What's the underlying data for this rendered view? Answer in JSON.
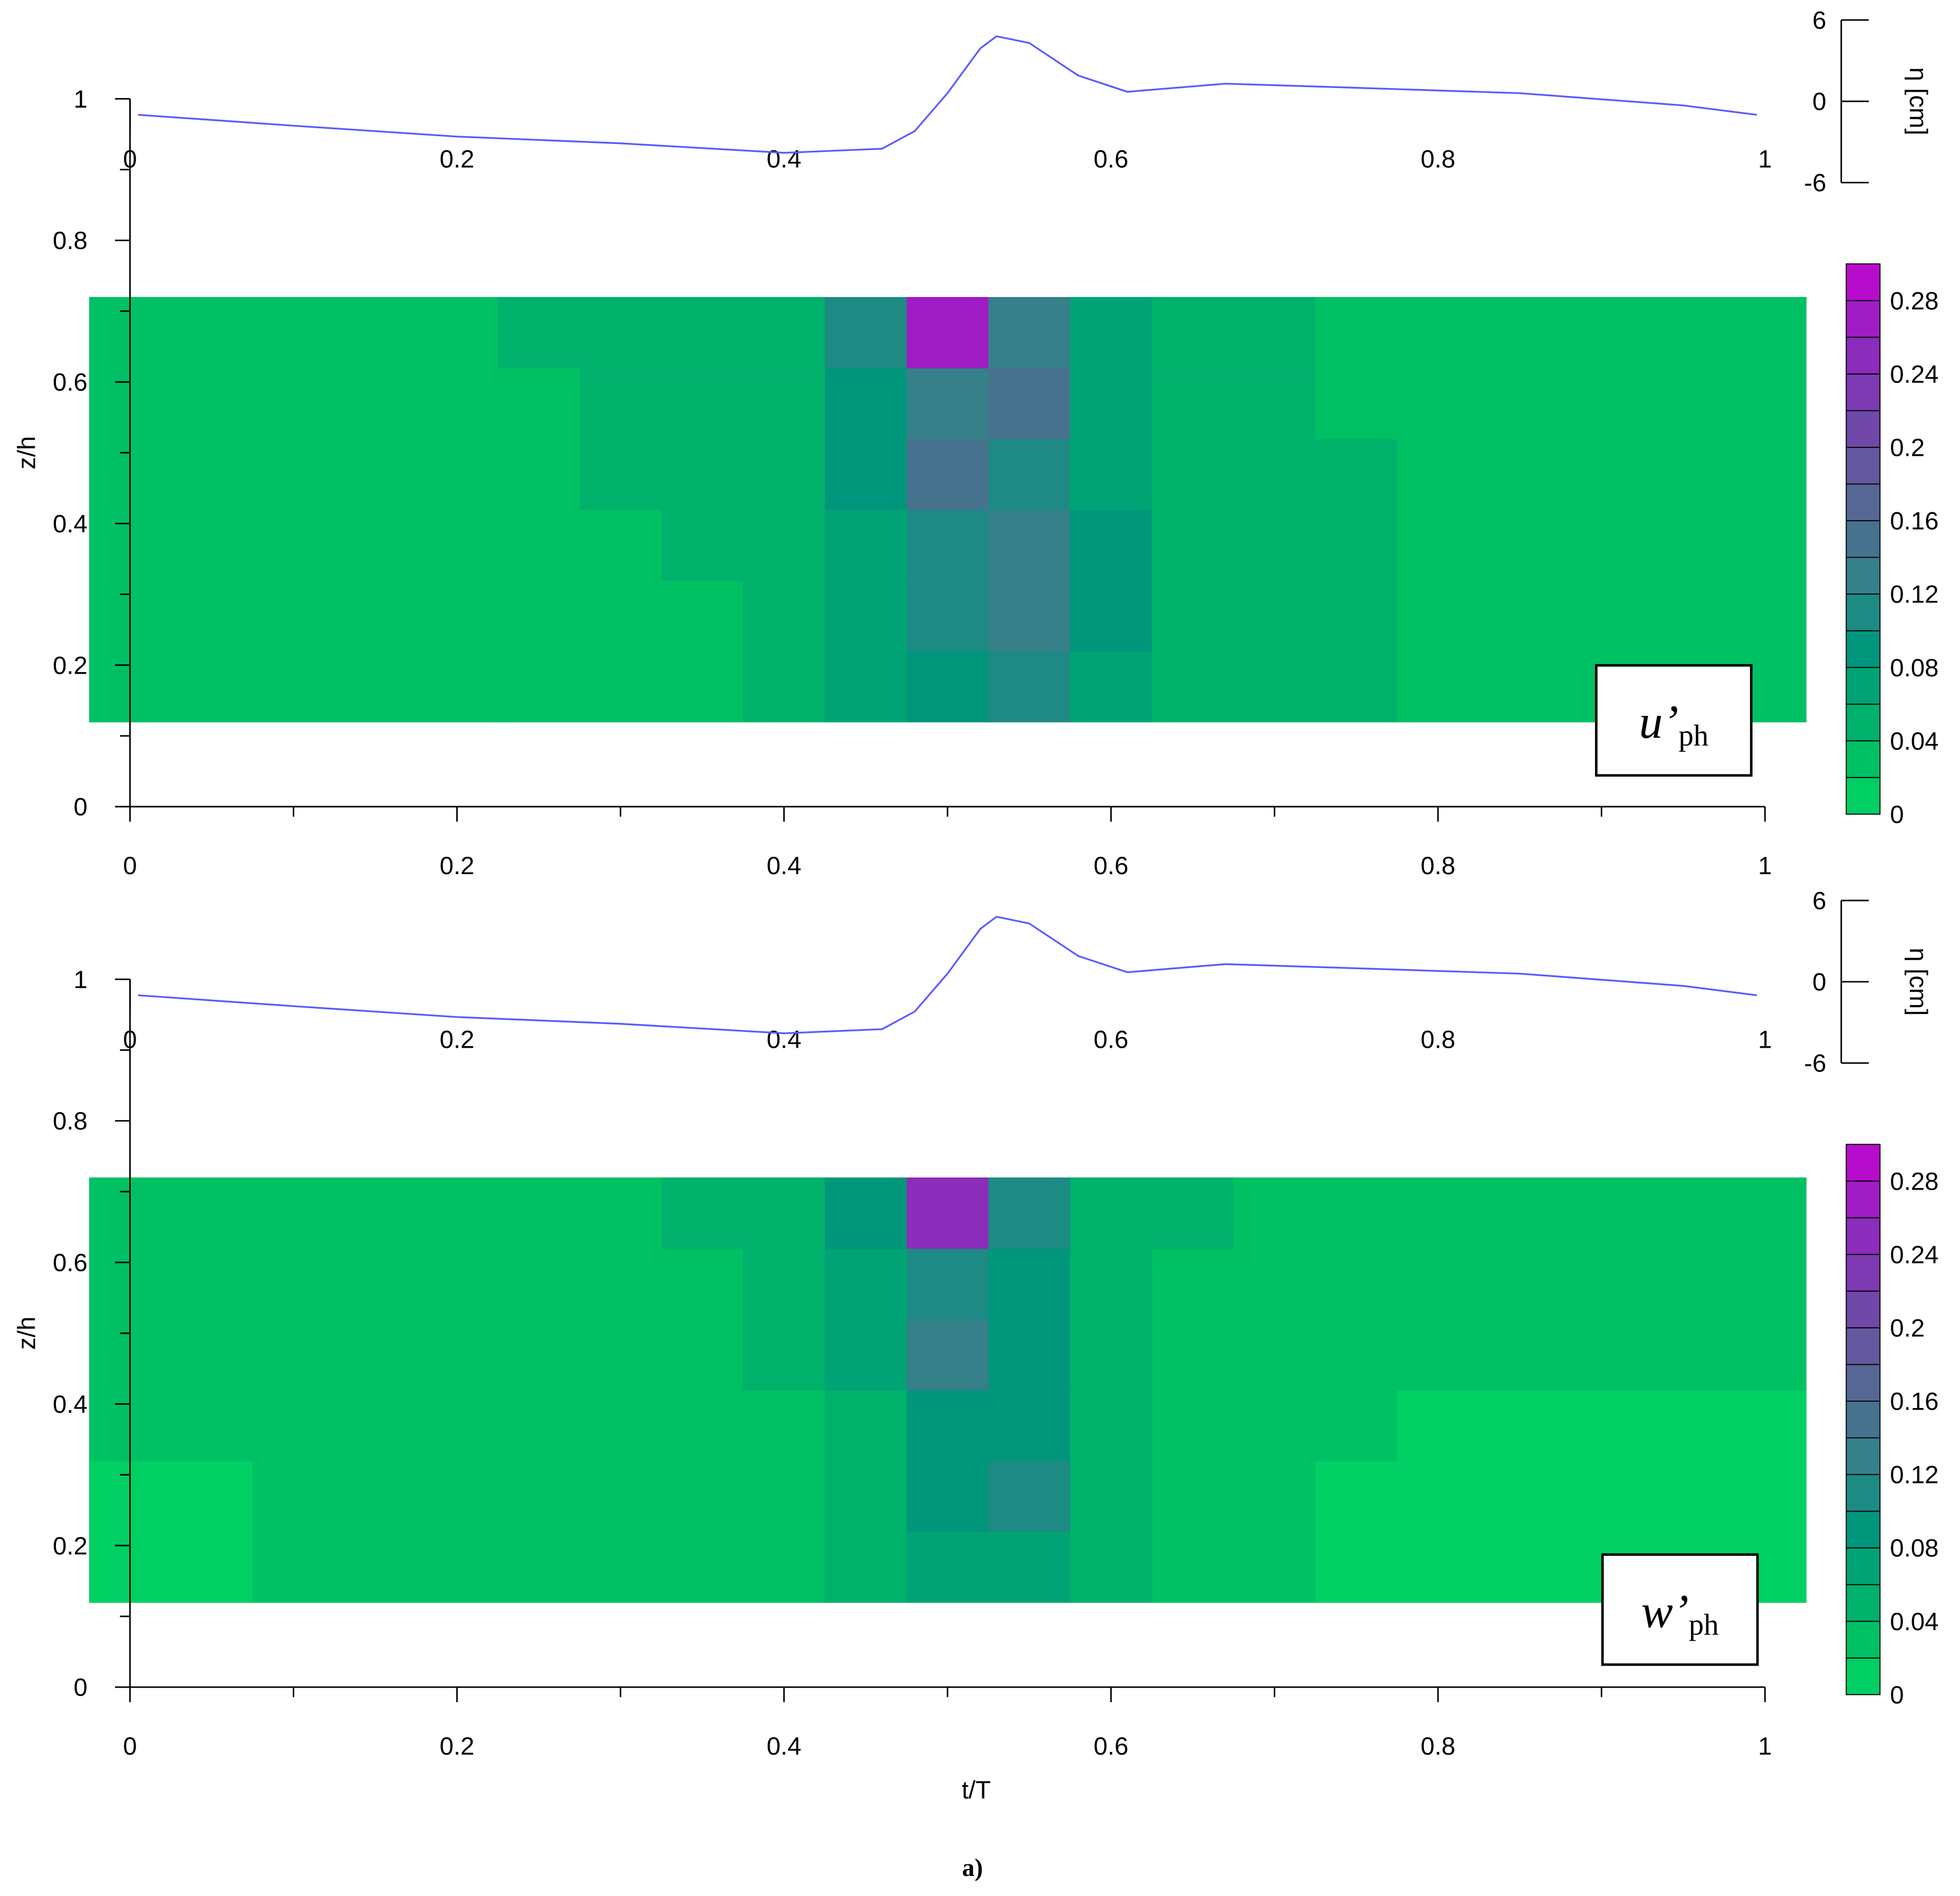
{
  "caption": "a)",
  "chart_data": [
    {
      "type": "contour",
      "ylabel": "z/h",
      "label": {
        "main": "u’",
        "sub": "ph"
      },
      "xlim": [
        0,
        1
      ],
      "ylim": [
        0,
        1
      ],
      "xticks": [
        0,
        0.2,
        0.4,
        0.6,
        0.8,
        1
      ],
      "yticks": [
        0,
        0.2,
        0.4,
        0.6,
        0.8,
        1
      ],
      "x": [
        0,
        0.05,
        0.1,
        0.15,
        0.2,
        0.25,
        0.3,
        0.35,
        0.4,
        0.45,
        0.5,
        0.55,
        0.6,
        0.65,
        0.7,
        0.75,
        0.8,
        0.85,
        0.9,
        0.95,
        1
      ],
      "z": [
        0.17,
        0.27,
        0.37,
        0.47,
        0.57,
        0.67
      ],
      "values": [
        [
          0.03,
          0.03,
          0.03,
          0.03,
          0.03,
          0.03,
          0.03,
          0.03,
          0.04,
          0.07,
          0.09,
          0.1,
          0.07,
          0.05,
          0.04,
          0.04,
          0.03,
          0.03,
          0.03,
          0.03,
          0.03
        ],
        [
          0.03,
          0.03,
          0.03,
          0.03,
          0.03,
          0.03,
          0.03,
          0.03,
          0.045,
          0.07,
          0.1,
          0.12,
          0.08,
          0.05,
          0.045,
          0.04,
          0.03,
          0.03,
          0.03,
          0.03,
          0.03
        ],
        [
          0.03,
          0.03,
          0.03,
          0.03,
          0.03,
          0.03,
          0.03,
          0.04,
          0.05,
          0.07,
          0.1,
          0.13,
          0.08,
          0.05,
          0.045,
          0.04,
          0.03,
          0.03,
          0.03,
          0.03,
          0.03
        ],
        [
          0.03,
          0.03,
          0.03,
          0.03,
          0.03,
          0.03,
          0.04,
          0.05,
          0.055,
          0.08,
          0.15,
          0.1,
          0.07,
          0.05,
          0.045,
          0.04,
          0.03,
          0.03,
          0.03,
          0.03,
          0.03
        ],
        [
          0.03,
          0.03,
          0.03,
          0.03,
          0.03,
          0.035,
          0.045,
          0.05,
          0.055,
          0.08,
          0.13,
          0.14,
          0.07,
          0.05,
          0.045,
          0.03,
          0.03,
          0.03,
          0.03,
          0.03,
          0.03
        ],
        [
          0.03,
          0.03,
          0.03,
          0.03,
          0.03,
          0.04,
          0.045,
          0.05,
          0.055,
          0.1,
          0.26,
          0.12,
          0.07,
          0.05,
          0.04,
          0.03,
          0.03,
          0.03,
          0.03,
          0.03,
          0.03
        ]
      ],
      "colorbar": {
        "levels": [
          0,
          0.02,
          0.04,
          0.06,
          0.08,
          0.1,
          0.12,
          0.14,
          0.16,
          0.18,
          0.2,
          0.22,
          0.24,
          0.26,
          0.28,
          0.3
        ],
        "colors": [
          "#00cf64",
          "#00c064",
          "#00b16c",
          "#00a474",
          "#00967c",
          "#1e8a84",
          "#36808a",
          "#46728e",
          "#566796",
          "#64599e",
          "#7048a8",
          "#7e3ab2",
          "#8c2cba",
          "#a01cc4",
          "#b80ccc"
        ],
        "ticks": [
          0,
          0.04,
          0.08,
          0.12,
          0.16,
          0.2,
          0.24,
          0.28
        ]
      },
      "eta": {
        "ylabel": "η [cm]",
        "color": "#5a5aff",
        "ylim": [
          -6,
          6
        ],
        "yticks": [
          -6,
          0,
          6
        ],
        "xticks": [
          0,
          0.2,
          0.4,
          0.6,
          0.8,
          1
        ],
        "x": [
          0.005,
          0.1,
          0.2,
          0.3,
          0.4,
          0.46,
          0.48,
          0.5,
          0.52,
          0.53,
          0.55,
          0.58,
          0.61,
          0.67,
          0.75,
          0.85,
          0.95,
          0.995
        ],
        "values": [
          -1.0,
          -1.8,
          -2.6,
          -3.1,
          -3.8,
          -3.5,
          -2.2,
          0.6,
          3.9,
          4.8,
          4.3,
          1.9,
          0.7,
          1.3,
          1.0,
          0.6,
          -0.3,
          -1.0
        ]
      }
    },
    {
      "type": "contour",
      "ylabel": "z/h",
      "xlabel": "t/T",
      "label": {
        "main": "w’",
        "sub": "ph"
      },
      "xlim": [
        0,
        1
      ],
      "ylim": [
        0,
        1
      ],
      "xticks": [
        0,
        0.2,
        0.4,
        0.6,
        0.8,
        1
      ],
      "yticks": [
        0,
        0.2,
        0.4,
        0.6,
        0.8,
        1
      ],
      "x": [
        0,
        0.05,
        0.1,
        0.15,
        0.2,
        0.25,
        0.3,
        0.35,
        0.4,
        0.45,
        0.5,
        0.55,
        0.6,
        0.65,
        0.7,
        0.75,
        0.8,
        0.85,
        0.9,
        0.95,
        1
      ],
      "z": [
        0.17,
        0.27,
        0.37,
        0.47,
        0.57,
        0.67
      ],
      "values": [
        [
          0.015,
          0.015,
          0.02,
          0.025,
          0.03,
          0.03,
          0.03,
          0.03,
          0.03,
          0.04,
          0.06,
          0.06,
          0.04,
          0.03,
          0.03,
          0.015,
          0.015,
          0.015,
          0.015,
          0.015,
          0.015
        ],
        [
          0.015,
          0.015,
          0.02,
          0.03,
          0.03,
          0.03,
          0.03,
          0.03,
          0.03,
          0.045,
          0.08,
          0.1,
          0.05,
          0.03,
          0.03,
          0.015,
          0.015,
          0.015,
          0.015,
          0.015,
          0.015
        ],
        [
          0.025,
          0.03,
          0.03,
          0.03,
          0.03,
          0.03,
          0.03,
          0.03,
          0.035,
          0.05,
          0.09,
          0.08,
          0.05,
          0.03,
          0.03,
          0.02,
          0.015,
          0.015,
          0.015,
          0.015,
          0.015
        ],
        [
          0.03,
          0.03,
          0.03,
          0.03,
          0.03,
          0.03,
          0.03,
          0.03,
          0.04,
          0.07,
          0.12,
          0.09,
          0.05,
          0.03,
          0.03,
          0.03,
          0.03,
          0.025,
          0.025,
          0.025,
          0.025
        ],
        [
          0.03,
          0.03,
          0.03,
          0.03,
          0.03,
          0.03,
          0.03,
          0.035,
          0.045,
          0.07,
          0.11,
          0.09,
          0.05,
          0.035,
          0.03,
          0.03,
          0.03,
          0.03,
          0.03,
          0.03,
          0.03
        ],
        [
          0.03,
          0.03,
          0.03,
          0.03,
          0.03,
          0.03,
          0.03,
          0.04,
          0.05,
          0.08,
          0.24,
          0.1,
          0.05,
          0.04,
          0.03,
          0.03,
          0.03,
          0.03,
          0.03,
          0.03,
          0.03
        ]
      ],
      "colorbar": {
        "levels": [
          0,
          0.02,
          0.04,
          0.06,
          0.08,
          0.1,
          0.12,
          0.14,
          0.16,
          0.18,
          0.2,
          0.22,
          0.24,
          0.26,
          0.28,
          0.3
        ],
        "colors": [
          "#00cf64",
          "#00c064",
          "#00b16c",
          "#00a474",
          "#00967c",
          "#1e8a84",
          "#36808a",
          "#46728e",
          "#566796",
          "#64599e",
          "#7048a8",
          "#7e3ab2",
          "#8c2cba",
          "#a01cc4",
          "#b80ccc"
        ],
        "ticks": [
          0,
          0.04,
          0.08,
          0.12,
          0.16,
          0.2,
          0.24,
          0.28
        ]
      },
      "eta": {
        "ylabel": "η [cm]",
        "color": "#5a5aff",
        "ylim": [
          -6,
          6
        ],
        "yticks": [
          -6,
          0,
          6
        ],
        "xticks": [
          0,
          0.2,
          0.4,
          0.6,
          0.8,
          1
        ],
        "x": [
          0.005,
          0.1,
          0.2,
          0.3,
          0.4,
          0.46,
          0.48,
          0.5,
          0.52,
          0.53,
          0.55,
          0.58,
          0.61,
          0.67,
          0.75,
          0.85,
          0.95,
          0.995
        ],
        "values": [
          -1.0,
          -1.8,
          -2.6,
          -3.1,
          -3.8,
          -3.5,
          -2.2,
          0.6,
          3.9,
          4.8,
          4.3,
          1.9,
          0.7,
          1.3,
          1.0,
          0.6,
          -0.3,
          -1.0
        ]
      }
    }
  ]
}
